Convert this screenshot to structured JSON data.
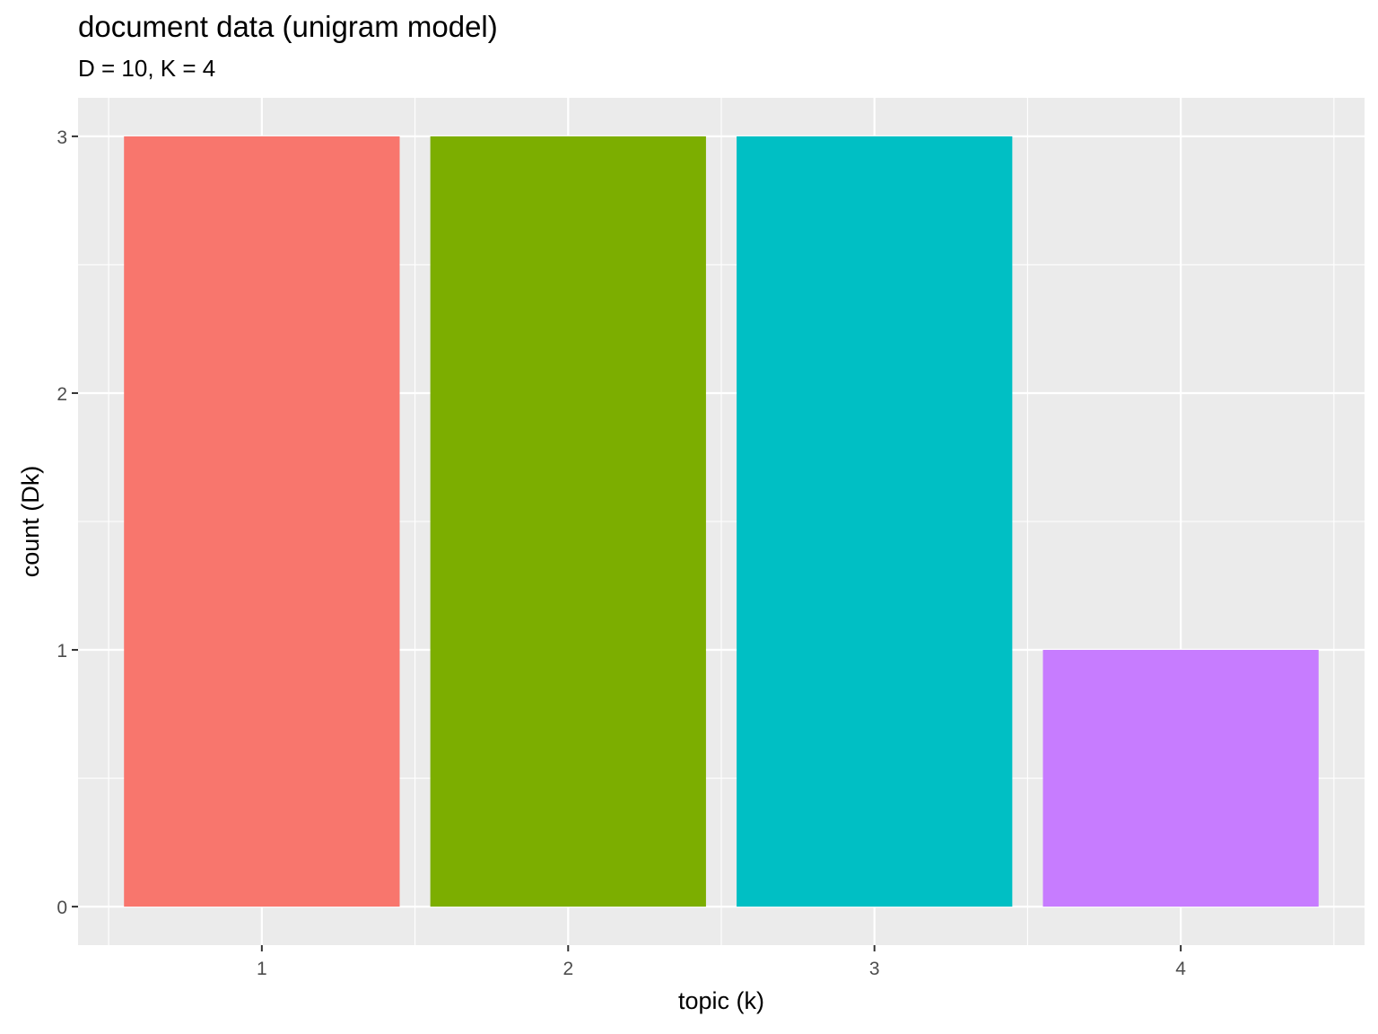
{
  "chart_data": {
    "type": "bar",
    "title": "document data (unigram model)",
    "subtitle": "D = 10, K = 4",
    "xlabel": "topic (k)",
    "ylabel": "count (Dk)",
    "categories": [
      "1",
      "2",
      "3",
      "4"
    ],
    "values": [
      3,
      3,
      3,
      1
    ],
    "colors": [
      "#F8766D",
      "#7CAE00",
      "#00BFC4",
      "#C77CFF"
    ],
    "ylim": [
      -0.15,
      3.15
    ],
    "yticks": [
      0,
      1,
      2,
      3
    ],
    "grid": true,
    "legend": "none",
    "panel_background": "#EBEBEB",
    "grid_color": "#FFFFFF"
  }
}
